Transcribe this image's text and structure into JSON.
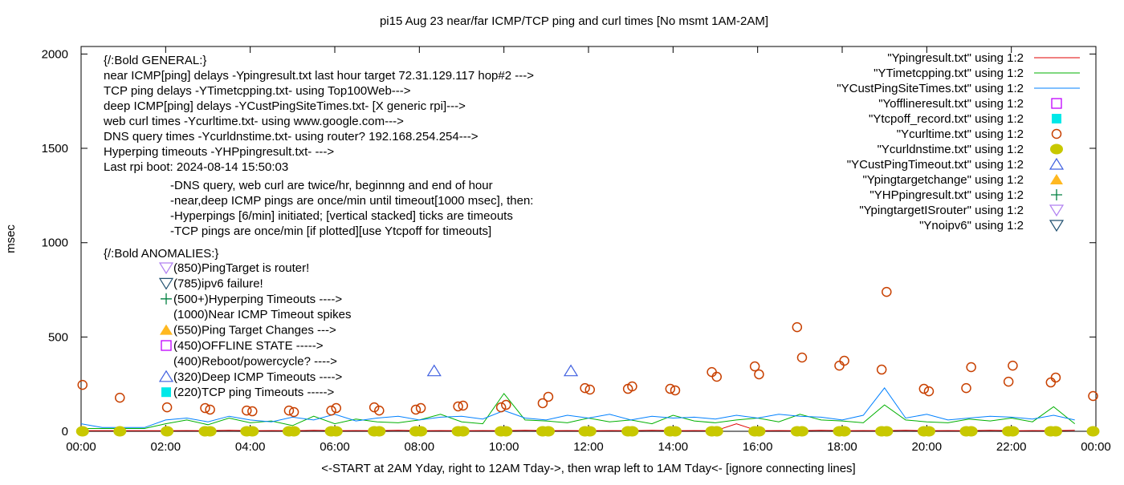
{
  "chart_data": {
    "type": "line",
    "title": "pi15 Aug 23  near/far ICMP/TCP ping and curl times [No msmt 1AM-2AM]",
    "xlabel": "<-START at 2AM Yday, right to 12AM Tday->, then wrap left to 1AM Tday<- [ignore connecting lines]",
    "ylabel": "msec",
    "xlim": [
      "00:00",
      "24:00"
    ],
    "ylim": [
      0,
      2040
    ],
    "x_tick_labels": [
      "00:00",
      "02:00",
      "04:00",
      "06:00",
      "08:00",
      "10:00",
      "12:00",
      "14:00",
      "16:00",
      "18:00",
      "20:00",
      "22:00",
      "00:00"
    ],
    "y_ticks": [
      0,
      500,
      1000,
      1500,
      2000
    ],
    "grid": false,
    "legend_placement": "top-right",
    "x": [
      "00:00",
      "00:30",
      "01:00",
      "01:30",
      "02:00",
      "02:30",
      "03:00",
      "03:30",
      "04:00",
      "04:30",
      "05:00",
      "05:30",
      "06:00",
      "06:30",
      "07:00",
      "07:30",
      "08:00",
      "08:30",
      "09:00",
      "09:30",
      "10:00",
      "10:30",
      "11:00",
      "11:30",
      "12:00",
      "12:30",
      "13:00",
      "13:30",
      "14:00",
      "14:30",
      "15:00",
      "15:30",
      "16:00",
      "16:30",
      "17:00",
      "17:30",
      "18:00",
      "18:30",
      "19:00",
      "19:30",
      "20:00",
      "20:30",
      "21:00",
      "21:30",
      "22:00",
      "22:30",
      "23:00",
      "23:30"
    ],
    "series": [
      {
        "name": "\"Ypingresult.txt\" using 1:2",
        "style": "line",
        "color": "#e00000",
        "values": [
          3,
          3,
          3,
          3,
          3,
          4,
          3,
          5,
          3,
          4,
          3,
          5,
          3,
          4,
          3,
          5,
          3,
          4,
          3,
          4,
          3,
          5,
          3,
          4,
          3,
          4,
          3,
          5,
          3,
          4,
          3,
          40,
          3,
          4,
          3,
          5,
          3,
          4,
          3,
          5,
          3,
          4,
          3,
          5,
          3,
          4,
          3,
          5
        ]
      },
      {
        "name": "\"YTimetcpping.txt\" using 1:2",
        "style": "line",
        "color": "#00b000",
        "values": [
          15,
          15,
          15,
          15,
          40,
          60,
          35,
          70,
          45,
          55,
          30,
          80,
          40,
          65,
          50,
          45,
          60,
          90,
          50,
          40,
          200,
          60,
          55,
          45,
          70,
          50,
          60,
          40,
          85,
          55,
          45,
          60,
          70,
          50,
          90,
          60,
          55,
          45,
          140,
          60,
          50,
          45,
          65,
          55,
          70,
          50,
          130,
          40
        ]
      },
      {
        "name": "\"YCustPingSiteTimes.txt\" using 1:2",
        "style": "line",
        "color": "#0080ff",
        "values": [
          40,
          20,
          20,
          20,
          60,
          70,
          50,
          80,
          60,
          50,
          75,
          60,
          90,
          55,
          70,
          80,
          60,
          75,
          80,
          65,
          110,
          70,
          60,
          85,
          70,
          90,
          60,
          80,
          70,
          75,
          65,
          85,
          70,
          90,
          80,
          75,
          60,
          85,
          230,
          70,
          90,
          60,
          70,
          80,
          75,
          65,
          85,
          60
        ]
      },
      {
        "name": "\"Yofflineresult.txt\" using 1:2",
        "style": "open-square",
        "color": "#c000ff",
        "points": []
      },
      {
        "name": "\"Ytcpoff_record.txt\" using 1:2",
        "style": "filled-square",
        "color": "#00e8e8",
        "points": []
      },
      {
        "name": "\"Ycurltime.txt\" using 1:2",
        "style": "open-circle",
        "color": "#c84000",
        "points": [
          [
            "00:02",
            246
          ],
          [
            "00:55",
            178
          ],
          [
            "02:02",
            127
          ],
          [
            "02:56",
            123
          ],
          [
            "03:03",
            115
          ],
          [
            "03:55",
            110
          ],
          [
            "04:03",
            106
          ],
          [
            "04:55",
            110
          ],
          [
            "05:02",
            102
          ],
          [
            "05:55",
            110
          ],
          [
            "06:02",
            123
          ],
          [
            "06:56",
            127
          ],
          [
            "07:03",
            110
          ],
          [
            "07:55",
            115
          ],
          [
            "08:02",
            123
          ],
          [
            "08:55",
            132
          ],
          [
            "09:02",
            136
          ],
          [
            "09:56",
            127
          ],
          [
            "10:03",
            140
          ],
          [
            "10:55",
            149
          ],
          [
            "11:03",
            183
          ],
          [
            "11:55",
            229
          ],
          [
            "12:02",
            221
          ],
          [
            "12:56",
            225
          ],
          [
            "13:02",
            238
          ],
          [
            "13:56",
            225
          ],
          [
            "14:03",
            217
          ],
          [
            "14:55",
            314
          ],
          [
            "15:02",
            289
          ],
          [
            "15:56",
            344
          ],
          [
            "16:02",
            302
          ],
          [
            "16:56",
            552
          ],
          [
            "17:03",
            391
          ],
          [
            "17:56",
            348
          ],
          [
            "18:03",
            374
          ],
          [
            "18:56",
            327
          ],
          [
            "19:03",
            739
          ],
          [
            "19:56",
            225
          ],
          [
            "20:03",
            212
          ],
          [
            "20:56",
            229
          ],
          [
            "21:03",
            340
          ],
          [
            "21:56",
            263
          ],
          [
            "22:02",
            348
          ],
          [
            "22:56",
            259
          ],
          [
            "23:03",
            285
          ],
          [
            "23:56",
            187
          ]
        ]
      },
      {
        "name": "\"Ycurldnstime.txt\" using 1:2",
        "style": "filled-circle",
        "color": "#c8c800",
        "points": [
          [
            "00:02",
            0
          ],
          [
            "00:55",
            0
          ],
          [
            "02:02",
            0
          ],
          [
            "02:56",
            0
          ],
          [
            "03:03",
            0
          ],
          [
            "03:55",
            0
          ],
          [
            "04:03",
            0
          ],
          [
            "04:55",
            0
          ],
          [
            "05:02",
            0
          ],
          [
            "05:55",
            0
          ],
          [
            "06:02",
            0
          ],
          [
            "06:56",
            0
          ],
          [
            "07:03",
            0
          ],
          [
            "07:55",
            0
          ],
          [
            "08:02",
            0
          ],
          [
            "08:55",
            0
          ],
          [
            "09:02",
            0
          ],
          [
            "09:56",
            0
          ],
          [
            "10:03",
            0
          ],
          [
            "10:55",
            0
          ],
          [
            "11:03",
            0
          ],
          [
            "11:55",
            0
          ],
          [
            "12:02",
            0
          ],
          [
            "12:56",
            0
          ],
          [
            "13:02",
            0
          ],
          [
            "13:56",
            0
          ],
          [
            "14:03",
            0
          ],
          [
            "14:55",
            0
          ],
          [
            "15:02",
            0
          ],
          [
            "15:56",
            0
          ],
          [
            "16:02",
            0
          ],
          [
            "16:56",
            0
          ],
          [
            "17:03",
            0
          ],
          [
            "17:56",
            0
          ],
          [
            "18:03",
            0
          ],
          [
            "18:56",
            0
          ],
          [
            "19:03",
            0
          ],
          [
            "19:56",
            0
          ],
          [
            "20:03",
            0
          ],
          [
            "20:56",
            0
          ],
          [
            "21:03",
            0
          ],
          [
            "21:56",
            0
          ],
          [
            "22:02",
            0
          ],
          [
            "22:56",
            0
          ],
          [
            "23:03",
            0
          ],
          [
            "23:56",
            0
          ]
        ]
      },
      {
        "name": "\"YCustPingTimeout.txt\" using 1:2",
        "style": "open-triangle-up",
        "color": "#4060e0",
        "points": [
          [
            "08:21",
            320
          ],
          [
            "11:35",
            320
          ]
        ]
      },
      {
        "name": "\"Ypingtargetchange\" using 1:2",
        "style": "filled-triangle-up",
        "color": "#ffb820",
        "points": []
      },
      {
        "name": "\"YHPpingresult.txt\" using 1:2",
        "style": "plus",
        "color": "#008040",
        "points": []
      },
      {
        "name": "\"YpingtargetISrouter\" using 1:2",
        "style": "open-triangle-down",
        "color": "#b080f0",
        "points": []
      },
      {
        "name": "\"Ynoipv6\" using 1:2",
        "style": "open-triangle-down",
        "color": "#205070",
        "points": []
      }
    ],
    "annotations": {
      "general_lines": [
        "{/:Bold GENERAL:}",
        "near ICMP[ping] delays -Ypingresult.txt last hour target 72.31.129.117 hop#2 --->",
        "TCP ping delays -YTimetcpping.txt- using Top100Web--->",
        "deep ICMP[ping] delays -YCustPingSiteTimes.txt- [X generic rpi]--->",
        "web curl times -Ycurltime.txt- using www.google.com--->",
        "DNS query times -Ycurldnstime.txt- using router? 192.168.254.254--->",
        "Hyperping timeouts -YHPpingresult.txt- --->",
        "Last rpi boot: 2024-08-14 15:50:03"
      ],
      "notes": [
        "-DNS query, web curl are twice/hr, beginnng and end of hour",
        "-near,deep ICMP pings are once/min until timeout[1000 msec], then:",
        " -Hyperpings [6/min] initiated; [vertical stacked] ticks are timeouts",
        "-TCP pings are once/min [if plotted][use Ytcpoff for timeouts]"
      ],
      "anomalies_title": "{/:Bold ANOMALIES:}",
      "anomalies": [
        {
          "marker": "open-triangle-down",
          "color": "#b080f0",
          "text": "(850)PingTarget is router!"
        },
        {
          "marker": "open-triangle-down",
          "color": "#205070",
          "text": "(785)ipv6 failure!"
        },
        {
          "marker": "plus",
          "color": "#008040",
          "text": "(500+)Hyperping Timeouts ---->"
        },
        {
          "marker": "none",
          "color": "",
          "text": "(1000)Near ICMP Timeout spikes"
        },
        {
          "marker": "filled-triangle-up",
          "color": "#ffb820",
          "text": "(550)Ping Target Changes --->"
        },
        {
          "marker": "open-square",
          "color": "#c000ff",
          "text": "(450)OFFLINE STATE ----->"
        },
        {
          "marker": "none",
          "color": "",
          "text": "(400)Reboot/powercycle? ---->"
        },
        {
          "marker": "open-triangle-up",
          "color": "#4060e0",
          "text": "(320)Deep ICMP Timeouts ---->"
        },
        {
          "marker": "filled-square",
          "color": "#00e8e8",
          "text": "(220)TCP ping Timeouts ----->"
        }
      ]
    }
  }
}
